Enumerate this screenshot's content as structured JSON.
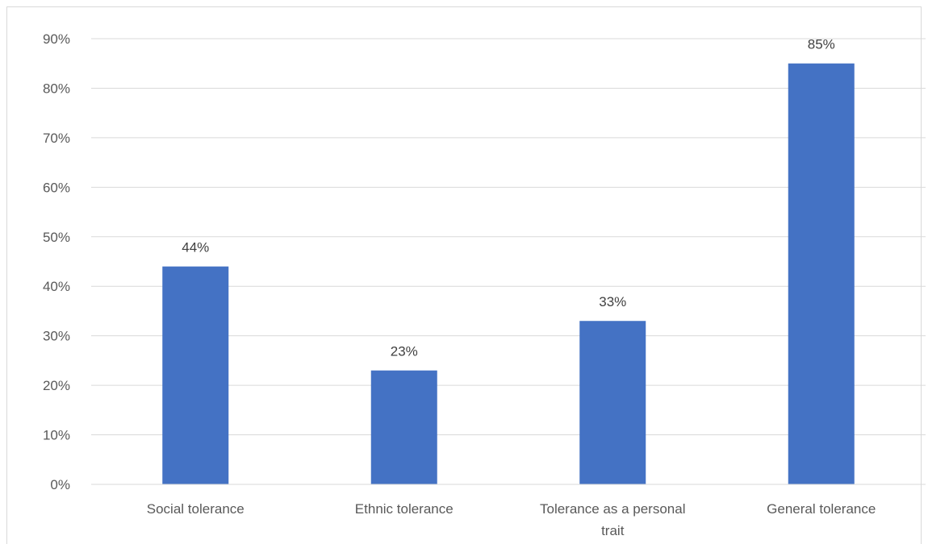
{
  "chart_data": {
    "type": "bar",
    "title": "",
    "xlabel": "",
    "ylabel": "",
    "categories": [
      "Social tolerance",
      "Ethnic tolerance",
      "Tolerance as a personal trait",
      "General tolerance"
    ],
    "values": [
      44,
      23,
      33,
      85
    ],
    "value_labels": [
      "44%",
      "23%",
      "33%",
      "85%"
    ],
    "ylim": [
      0,
      90
    ],
    "yticks": [
      0,
      10,
      20,
      30,
      40,
      50,
      60,
      70,
      80,
      90
    ],
    "ytick_labels": [
      "0%",
      "10%",
      "20%",
      "30%",
      "40%",
      "50%",
      "60%",
      "70%",
      "80%",
      "90%"
    ],
    "grid": true,
    "legend": "none",
    "bar_color": "#4472c4"
  }
}
